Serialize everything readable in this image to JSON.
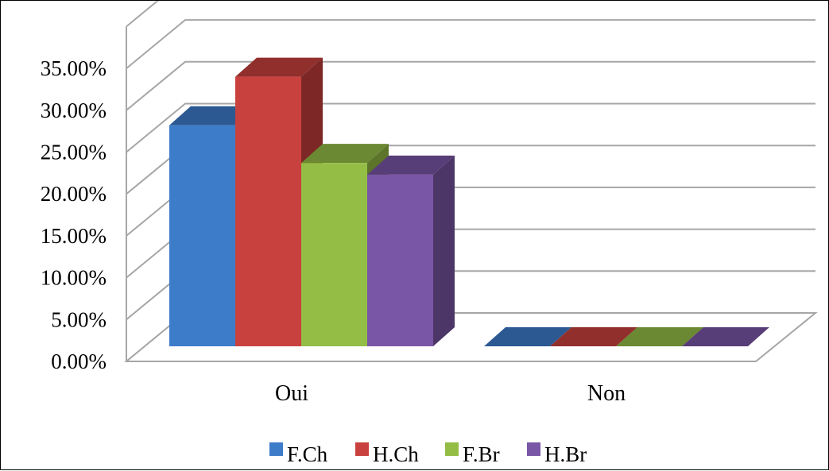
{
  "chart_data": {
    "type": "bar",
    "style": "3d-clustered-column",
    "categories": [
      "Oui",
      "Non"
    ],
    "series": [
      {
        "name": "F.Ch",
        "values": [
          0.264,
          0.0
        ],
        "color": "#3d7cc9"
      },
      {
        "name": "H.Ch",
        "values": [
          0.322,
          0.0
        ],
        "color": "#c9413e"
      },
      {
        "name": "F.Br",
        "values": [
          0.219,
          0.0
        ],
        "color": "#94bd45"
      },
      {
        "name": "H.Br",
        "values": [
          0.205,
          0.0
        ],
        "color": "#7a56a6"
      }
    ],
    "y_ticks": [
      "0.00%",
      "5.00%",
      "10.00%",
      "15.00%",
      "20.00%",
      "25.00%",
      "30.00%",
      "35.00%"
    ],
    "ylim": [
      0,
      0.4
    ],
    "grid": true,
    "legend": "bottom",
    "title": "",
    "xlabel": "",
    "ylabel": ""
  }
}
